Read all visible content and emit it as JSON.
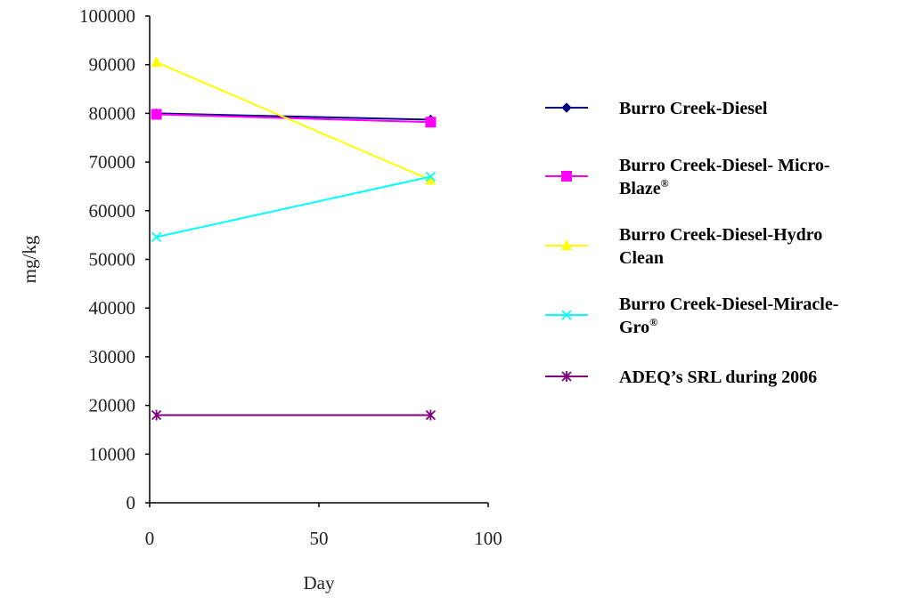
{
  "chart_data": {
    "type": "line",
    "title": "",
    "xlabel": "Day",
    "ylabel": "mg/kg",
    "xlim": [
      0,
      100
    ],
    "ylim": [
      0,
      100000
    ],
    "x_ticks": [
      "0",
      "50",
      "100"
    ],
    "y_ticks": [
      "0",
      "10000",
      "20000",
      "30000",
      "40000",
      "50000",
      "60000",
      "70000",
      "80000",
      "90000",
      "100000"
    ],
    "grid": false,
    "legend_position": "right",
    "series": [
      {
        "name": "Burro Creek-Diesel",
        "legend_lines": [
          "Burro Creek-Diesel"
        ],
        "legend_sup": "",
        "color": "#000080",
        "marker": "diamond",
        "x": [
          2,
          83
        ],
        "values": [
          80000,
          78700
        ]
      },
      {
        "name": "Burro Creek-Diesel- Micro-Blaze®",
        "legend_lines": [
          "Burro Creek-Diesel- Micro-",
          "Blaze"
        ],
        "legend_sup": "®",
        "color": "#ff00ff",
        "marker": "square",
        "x": [
          2,
          83
        ],
        "values": [
          79800,
          78200
        ]
      },
      {
        "name": "Burro Creek-Diesel-Hydro Clean",
        "legend_lines": [
          "Burro Creek-Diesel-Hydro",
          "Clean"
        ],
        "legend_sup": "",
        "color": "#ffff00",
        "marker": "triangle",
        "x": [
          2,
          83
        ],
        "values": [
          90500,
          66300
        ]
      },
      {
        "name": "Burro Creek-Diesel-Miracle-Gro®",
        "legend_lines": [
          "Burro Creek-Diesel-Miracle-",
          "Gro"
        ],
        "legend_sup": "®",
        "color": "#00ffff",
        "marker": "x",
        "x": [
          2,
          83
        ],
        "values": [
          54600,
          67000
        ]
      },
      {
        "name": "ADEQ’s SRL during 2006",
        "legend_lines": [
          "ADEQ’s SRL during 2006"
        ],
        "legend_sup": "",
        "color": "#800080",
        "marker": "star",
        "x": [
          2,
          83
        ],
        "values": [
          18000,
          18000
        ]
      }
    ]
  }
}
